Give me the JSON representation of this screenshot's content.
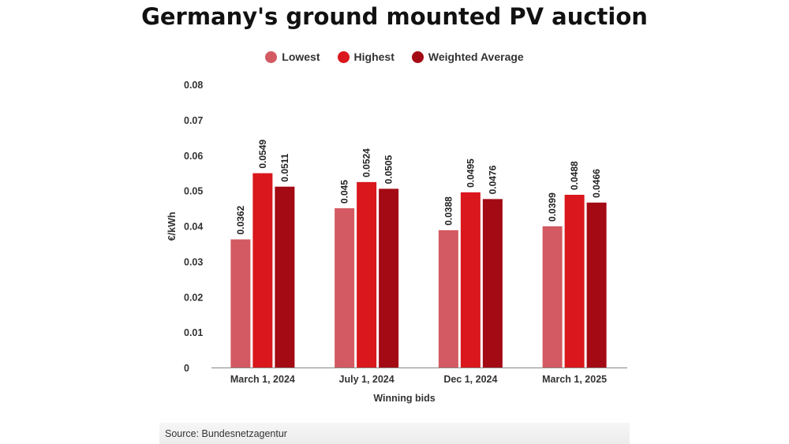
{
  "chart_data": {
    "type": "bar",
    "title": "Germany's ground mounted PV auction",
    "xlabel": "Winning bids",
    "ylabel": "€/kWh",
    "ylim": [
      0,
      0.08
    ],
    "yticks": [
      "0",
      "0.01",
      "0.02",
      "0.03",
      "0.04",
      "0.05",
      "0.06",
      "0.07",
      "0.08"
    ],
    "grid": false,
    "legend_position": "top",
    "categories": [
      "March 1, 2024",
      "July 1, 2024",
      "Dec 1, 2024",
      "March 1, 2025"
    ],
    "series": [
      {
        "name": "Lowest",
        "color": "#d35a62",
        "values": [
          0.0362,
          0.045,
          0.0388,
          0.0399
        ],
        "labels": [
          "0.0362",
          "0.045",
          "0.0388",
          "0.0399"
        ]
      },
      {
        "name": "Highest",
        "color": "#d9171c",
        "values": [
          0.0549,
          0.0524,
          0.0495,
          0.0488
        ],
        "labels": [
          "0.0549",
          "0.0524",
          "0.0495",
          "0.0488"
        ]
      },
      {
        "name": "Weighted Average",
        "color": "#a30a14",
        "values": [
          0.0511,
          0.0505,
          0.0476,
          0.0466
        ],
        "labels": [
          "0.0511",
          "0.0505",
          "0.0476",
          "0.0466"
        ]
      }
    ]
  },
  "footer": {
    "source": "Source: Bundesnetzagentur"
  }
}
